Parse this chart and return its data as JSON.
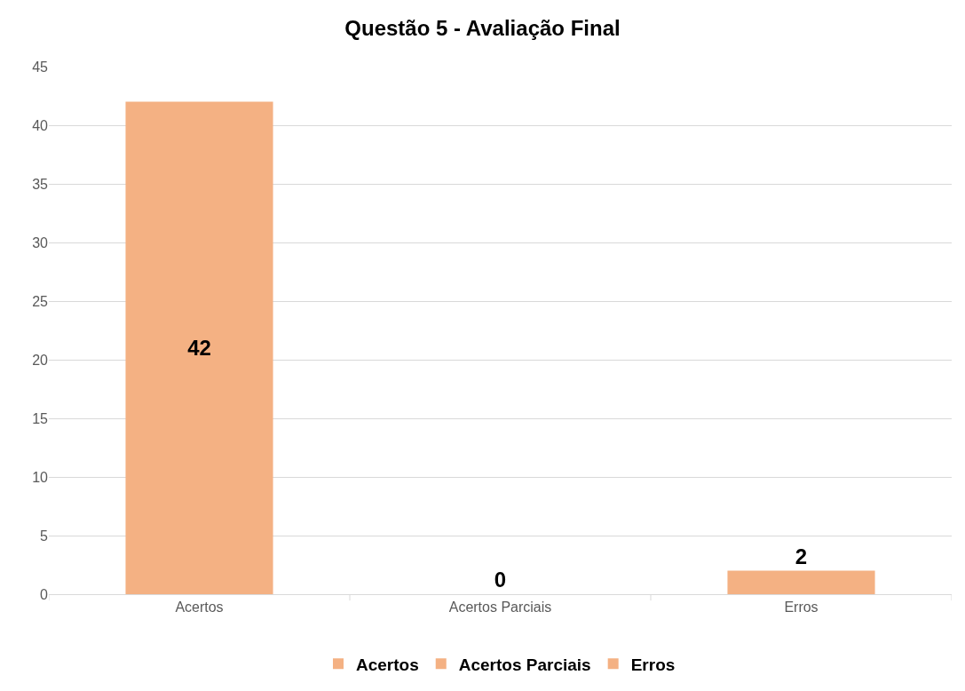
{
  "chart_data": {
    "type": "bar",
    "title": "Questão 5 - Avaliação Final",
    "categories": [
      "Acertos",
      "Acertos Parciais",
      "Erros"
    ],
    "series": [
      {
        "name": "Acertos",
        "color": "#f4b183",
        "values": [
          42,
          null,
          null
        ]
      },
      {
        "name": "Acertos Parciais",
        "color": "#f4b183",
        "values": [
          null,
          0,
          null
        ]
      },
      {
        "name": "Erros",
        "color": "#f4b183",
        "values": [
          null,
          null,
          2
        ]
      }
    ],
    "ylim": [
      0,
      45
    ],
    "yticks": [
      0,
      5,
      10,
      15,
      20,
      25,
      30,
      35,
      40,
      45
    ],
    "grid": "y",
    "legend": "bottom",
    "data_labels": true
  }
}
